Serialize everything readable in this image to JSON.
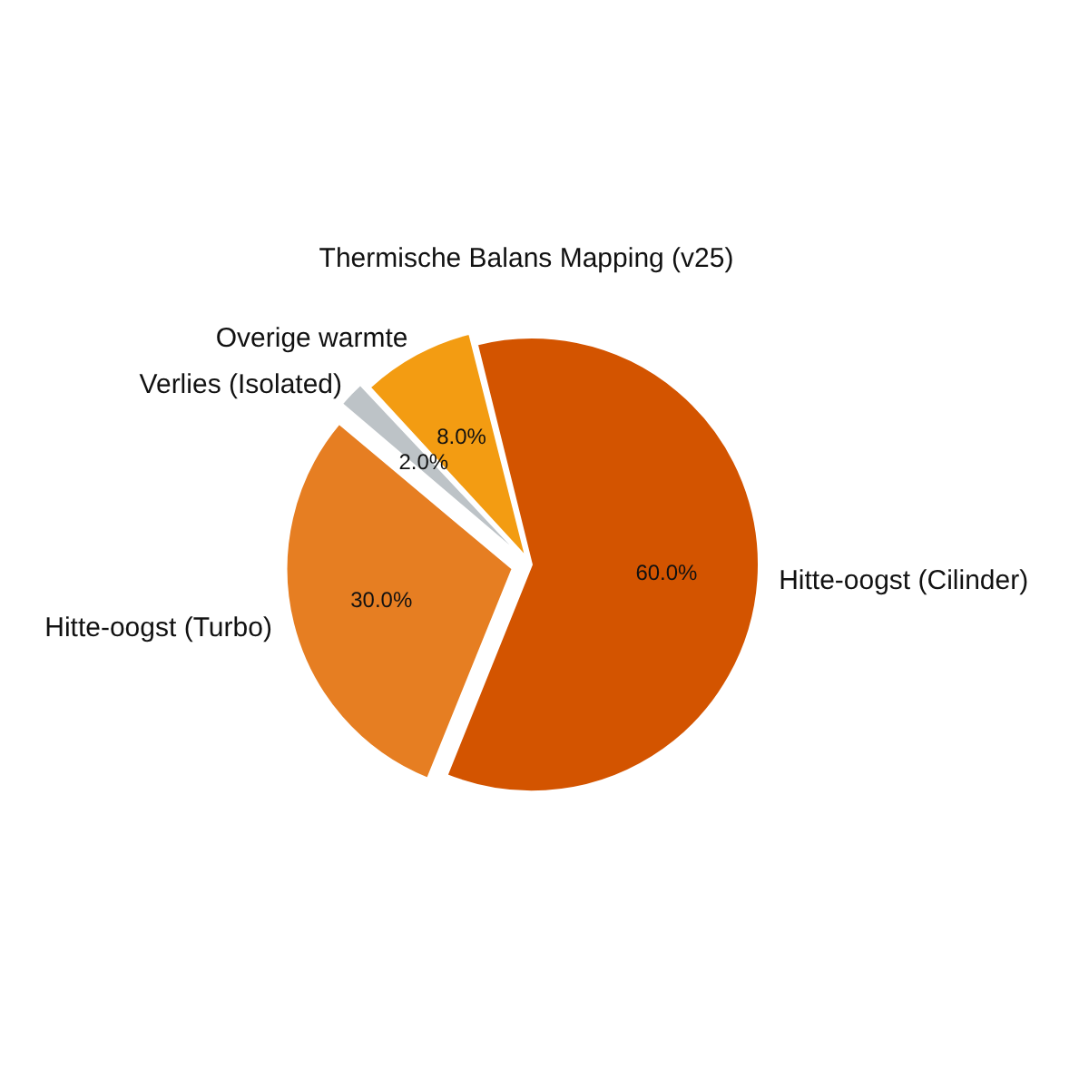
{
  "chart_data": {
    "type": "pie",
    "title": "Thermische Balans Mapping (v25)",
    "categories": [
      "Hitte-oogst (Cilinder)",
      "Hitte-oogst (Turbo)",
      "Verlies (Isolated)",
      "Overige warmte"
    ],
    "values": [
      60,
      30,
      2,
      8
    ],
    "colors": [
      "#d35400",
      "#e67e22",
      "#bdc3c7",
      "#f39c12"
    ],
    "value_labels": [
      "60.0%",
      "30.0%",
      "2.0%",
      "8.0%"
    ]
  }
}
